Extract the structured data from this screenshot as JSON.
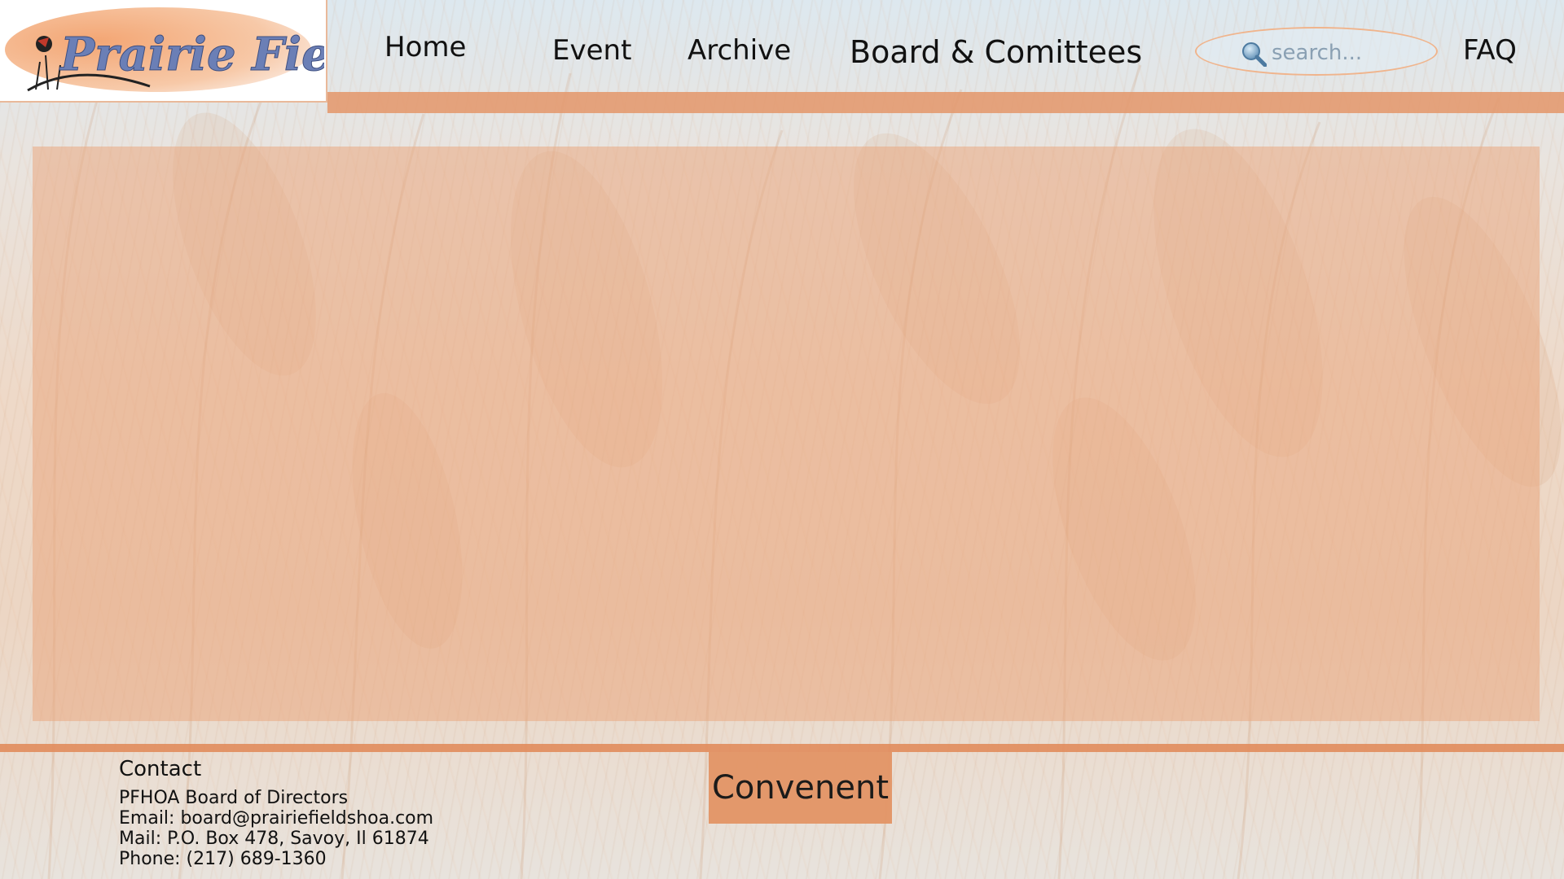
{
  "header": {
    "logo_text": "Prairie Fields",
    "nav": {
      "home": "Home",
      "event": "Event",
      "archive": "Archive",
      "board": "Board & Comittees",
      "faq": "FAQ"
    },
    "search": {
      "placeholder": "search...",
      "icon": "search-icon"
    }
  },
  "main": {
    "content": ""
  },
  "footer": {
    "contact": {
      "heading": "Contact",
      "org": "PFHOA Board of Directors",
      "email": "Email: board@prairiefieldshoa.com",
      "mail": "Mail: P.O. Box 478, Savoy, Il  61874",
      "phone": "Phone: (217) 689-1360"
    },
    "convenent_button": "Convenent"
  },
  "colors": {
    "accent_orange": "#e39a70",
    "panel_orange": "#eaa880",
    "logo_blue": "#6b7fb6",
    "search_border": "#f0b48c"
  }
}
